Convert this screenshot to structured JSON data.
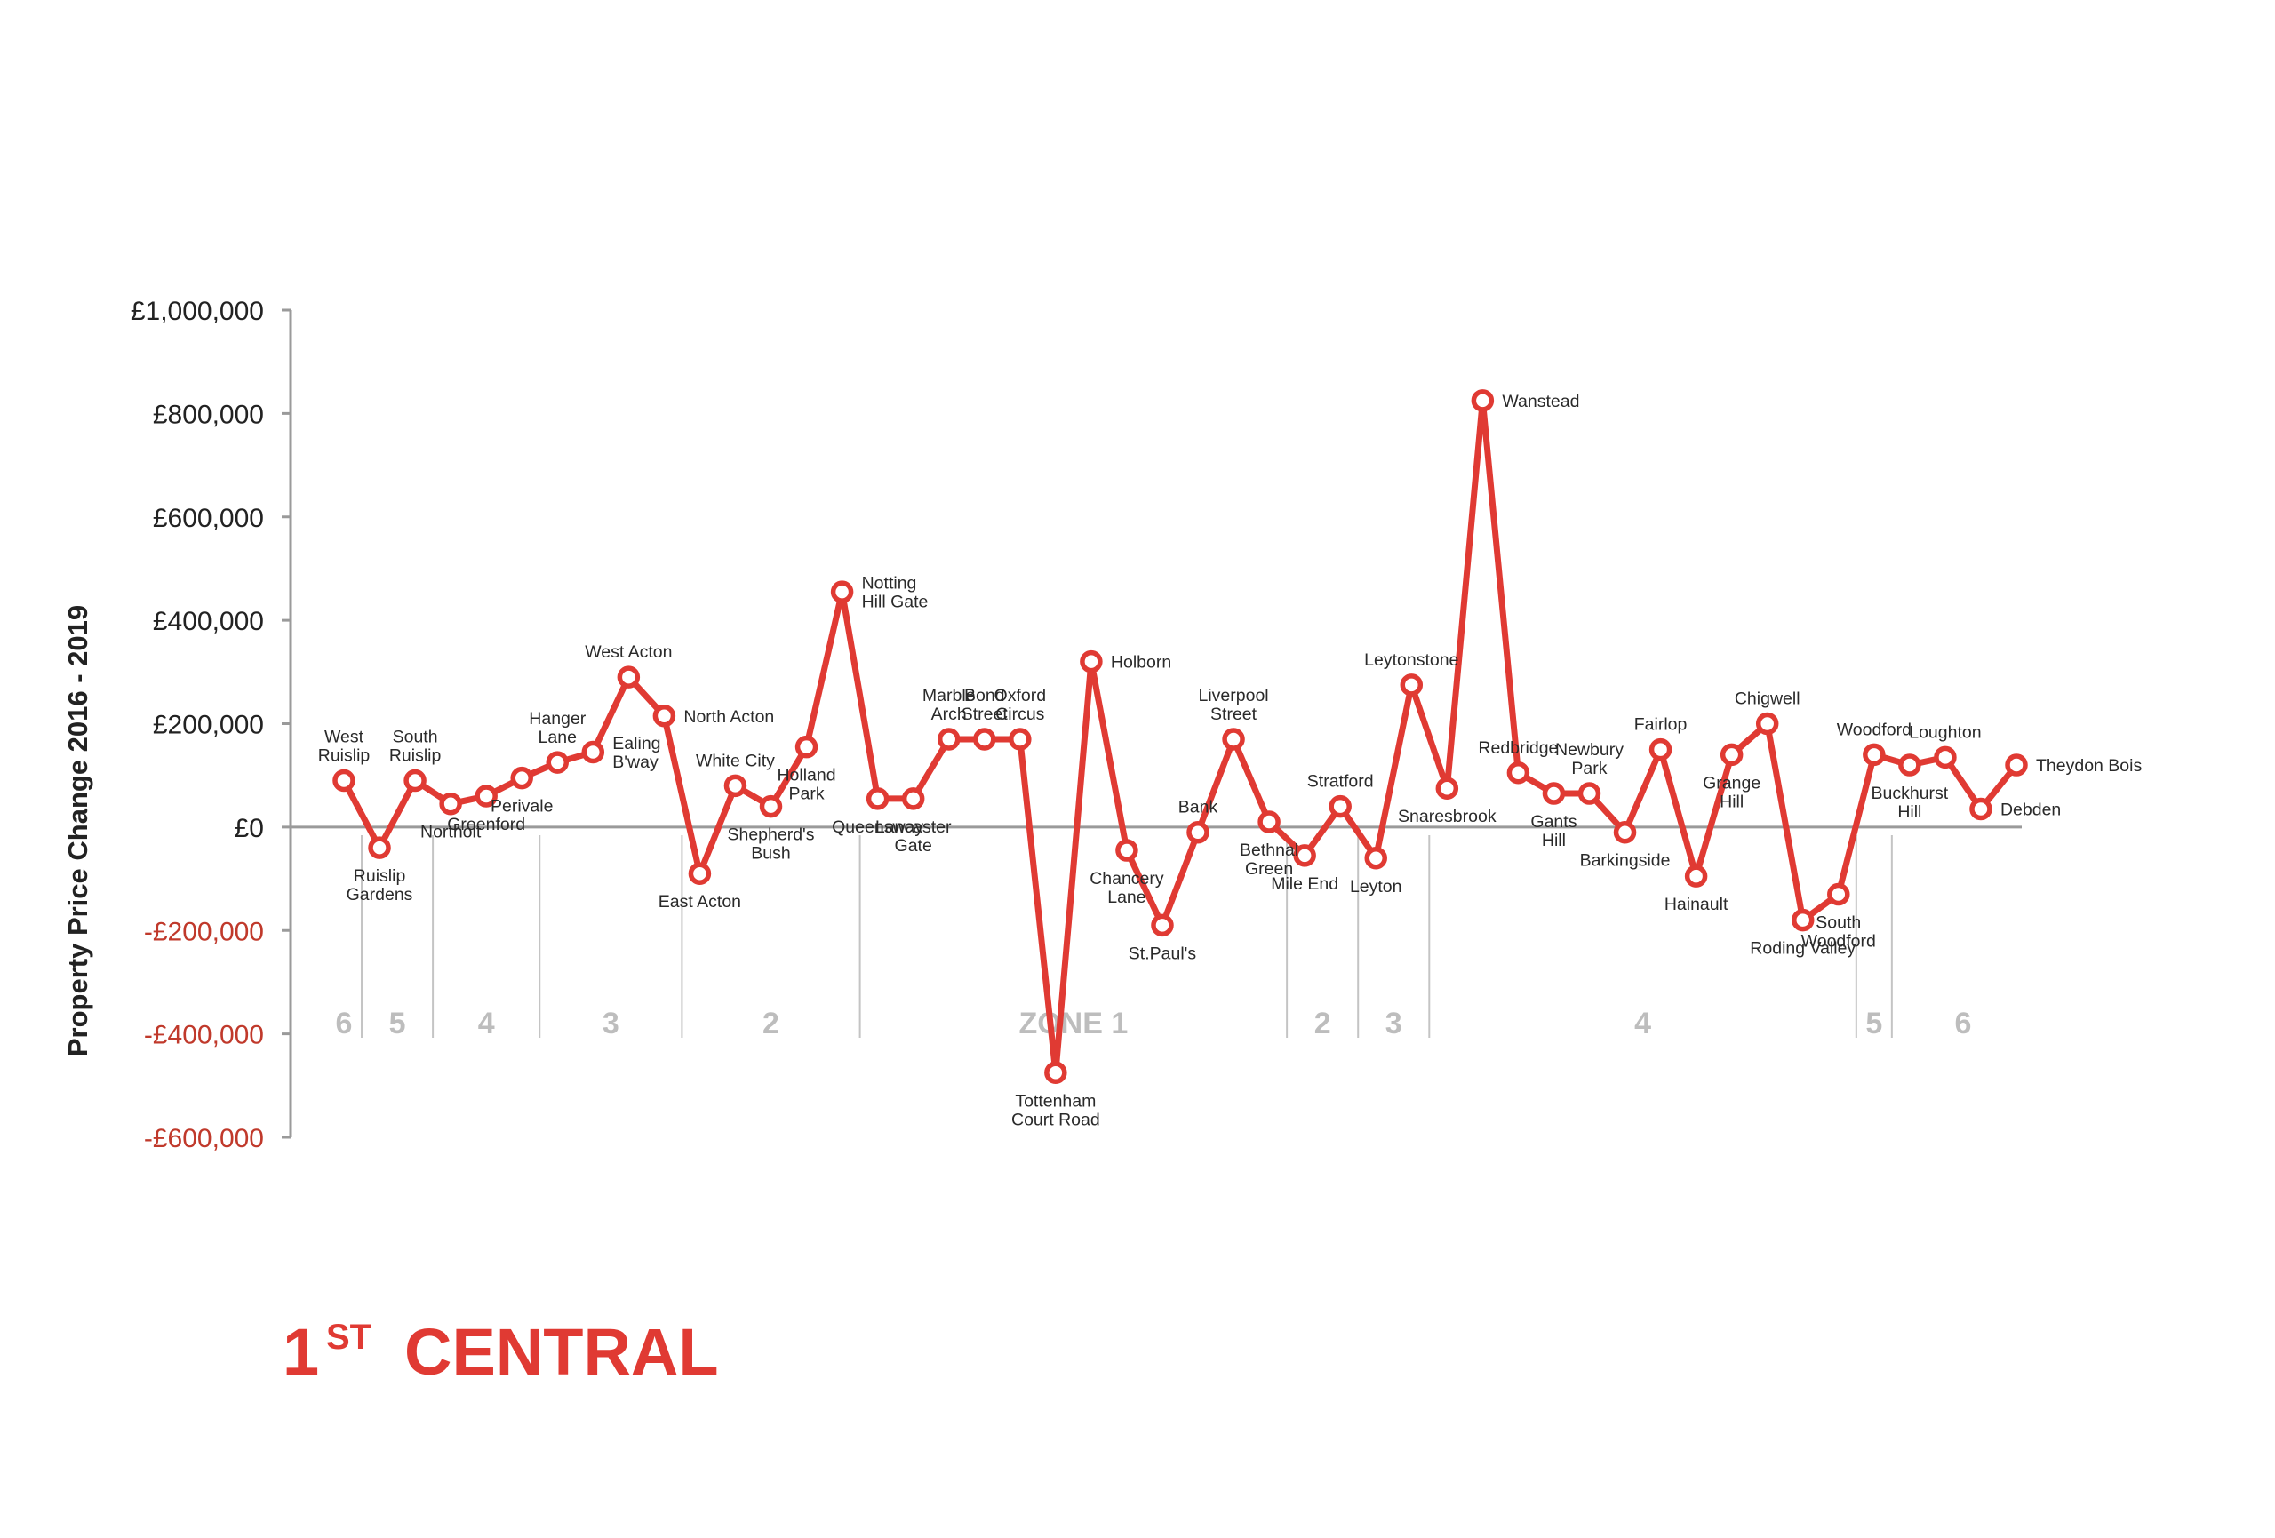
{
  "title": {
    "rank": "1",
    "rank_suffix": "ST",
    "line": "CENTRAL"
  },
  "colors": {
    "line": "#e03a33",
    "axis": "#9a9a9a",
    "zone_text": "#bdbdbd",
    "positive_tick": "#222222",
    "negative_tick": "#c0392b"
  },
  "chart_data": {
    "type": "line",
    "title": "",
    "xlabel": "",
    "ylabel": "Property Price Change 2016 - 2019",
    "ylim": [
      -600000,
      1000000
    ],
    "yticks": [
      {
        "value": 1000000,
        "label": "£1,000,000"
      },
      {
        "value": 800000,
        "label": "£800,000"
      },
      {
        "value": 600000,
        "label": "£600,000"
      },
      {
        "value": 400000,
        "label": "£400,000"
      },
      {
        "value": 200000,
        "label": "£200,000"
      },
      {
        "value": 0,
        "label": "£0"
      },
      {
        "value": -200000,
        "label": "-£200,000"
      },
      {
        "value": -400000,
        "label": "-£400,000"
      },
      {
        "value": -600000,
        "label": "-£600,000"
      }
    ],
    "grid": false,
    "legend": "none",
    "points": [
      {
        "name": [
          "West",
          "Ruislip"
        ],
        "value": 90000,
        "label_pos": "above"
      },
      {
        "name": [
          "Ruislip",
          "Gardens"
        ],
        "value": -40000,
        "label_pos": "below"
      },
      {
        "name": [
          "South",
          "Ruislip"
        ],
        "value": 90000,
        "label_pos": "above"
      },
      {
        "name": [
          "Northolt"
        ],
        "value": 45000,
        "label_pos": "below"
      },
      {
        "name": [
          "Greenford"
        ],
        "value": 60000,
        "label_pos": "below"
      },
      {
        "name": [
          "Perivale"
        ],
        "value": 95000,
        "label_pos": "below"
      },
      {
        "name": [
          "Hanger",
          "Lane"
        ],
        "value": 125000,
        "label_pos": "above"
      },
      {
        "name": [
          "Ealing",
          "B'way"
        ],
        "value": 145000,
        "label_pos": "right"
      },
      {
        "name": [
          "West Acton"
        ],
        "value": 290000,
        "label_pos": "above"
      },
      {
        "name": [
          "North Acton"
        ],
        "value": 215000,
        "label_pos": "right"
      },
      {
        "name": [
          "East Acton"
        ],
        "value": -90000,
        "label_pos": "below"
      },
      {
        "name": [
          "White City"
        ],
        "value": 80000,
        "label_pos": "above"
      },
      {
        "name": [
          "Shepherd's",
          "Bush"
        ],
        "value": 40000,
        "label_pos": "below"
      },
      {
        "name": [
          "Holland",
          "Park"
        ],
        "value": 155000,
        "label_pos": "below"
      },
      {
        "name": [
          "Notting",
          "Hill Gate"
        ],
        "value": 455000,
        "label_pos": "right"
      },
      {
        "name": [
          "Queensway"
        ],
        "value": 55000,
        "label_pos": "below"
      },
      {
        "name": [
          "Lancaster",
          "Gate"
        ],
        "value": 55000,
        "label_pos": "below"
      },
      {
        "name": [
          "Marble",
          "Arch"
        ],
        "value": 170000,
        "label_pos": "above"
      },
      {
        "name": [
          "Bond",
          "Street"
        ],
        "value": 170000,
        "label_pos": "above"
      },
      {
        "name": [
          "Oxford",
          "Circus"
        ],
        "value": 170000,
        "label_pos": "above"
      },
      {
        "name": [
          "Tottenham",
          "Court Road"
        ],
        "value": -475000,
        "label_pos": "below"
      },
      {
        "name": [
          "Holborn"
        ],
        "value": 320000,
        "label_pos": "right"
      },
      {
        "name": [
          "Chancery",
          "Lane"
        ],
        "value": -45000,
        "label_pos": "below"
      },
      {
        "name": [
          "St.Paul's"
        ],
        "value": -190000,
        "label_pos": "below"
      },
      {
        "name": [
          "Bank"
        ],
        "value": -10000,
        "label_pos": "above"
      },
      {
        "name": [
          "Liverpool",
          "Street"
        ],
        "value": 170000,
        "label_pos": "above"
      },
      {
        "name": [
          "Bethnal",
          "Green"
        ],
        "value": 10000,
        "label_pos": "below"
      },
      {
        "name": [
          "Mile End"
        ],
        "value": -55000,
        "label_pos": "below"
      },
      {
        "name": [
          "Stratford"
        ],
        "value": 40000,
        "label_pos": "above"
      },
      {
        "name": [
          "Leyton"
        ],
        "value": -60000,
        "label_pos": "below"
      },
      {
        "name": [
          "Leytonstone"
        ],
        "value": 275000,
        "label_pos": "above"
      },
      {
        "name": [
          "Snaresbrook"
        ],
        "value": 75000,
        "label_pos": "below"
      },
      {
        "name": [
          "Wanstead"
        ],
        "value": 825000,
        "label_pos": "right"
      },
      {
        "name": [
          "Redbridge"
        ],
        "value": 105000,
        "label_pos": "above"
      },
      {
        "name": [
          "Gants",
          "Hill"
        ],
        "value": 65000,
        "label_pos": "below"
      },
      {
        "name": [
          "Newbury",
          "Park"
        ],
        "value": 65000,
        "label_pos": "above"
      },
      {
        "name": [
          "Barkingside"
        ],
        "value": -10000,
        "label_pos": "below"
      },
      {
        "name": [
          "Fairlop"
        ],
        "value": 150000,
        "label_pos": "above"
      },
      {
        "name": [
          "Hainault"
        ],
        "value": -95000,
        "label_pos": "below"
      },
      {
        "name": [
          "Grange",
          "Hill"
        ],
        "value": 140000,
        "label_pos": "below"
      },
      {
        "name": [
          "Chigwell"
        ],
        "value": 200000,
        "label_pos": "above"
      },
      {
        "name": [
          "Roding Valley"
        ],
        "value": -180000,
        "label_pos": "below"
      },
      {
        "name": [
          "South",
          "Woodford"
        ],
        "value": -130000,
        "label_pos": "below"
      },
      {
        "name": [
          "Woodford"
        ],
        "value": 140000,
        "label_pos": "above"
      },
      {
        "name": [
          "Buckhurst",
          "Hill"
        ],
        "value": 120000,
        "label_pos": "below"
      },
      {
        "name": [
          "Loughton"
        ],
        "value": 135000,
        "label_pos": "above"
      },
      {
        "name": [
          "Debden"
        ],
        "value": 35000,
        "label_pos": "right"
      },
      {
        "name": [
          "Theydon Bois"
        ],
        "value": 120000,
        "label_pos": "right"
      }
    ],
    "zones": [
      {
        "label": "6",
        "from": 0,
        "to": 0
      },
      {
        "label": "5",
        "from": 1,
        "to": 2
      },
      {
        "label": "4",
        "from": 3,
        "to": 5
      },
      {
        "label": "3",
        "from": 6,
        "to": 9
      },
      {
        "label": "2",
        "from": 10,
        "to": 14
      },
      {
        "label": "ZONE  1",
        "from": 15,
        "to": 26
      },
      {
        "label": "2",
        "from": 27,
        "to": 28
      },
      {
        "label": "3",
        "from": 29,
        "to": 30
      },
      {
        "label": "4",
        "from": 31,
        "to": 42
      },
      {
        "label": "5",
        "from": 43,
        "to": 43
      },
      {
        "label": "6",
        "from": 44,
        "to": 47
      }
    ]
  }
}
